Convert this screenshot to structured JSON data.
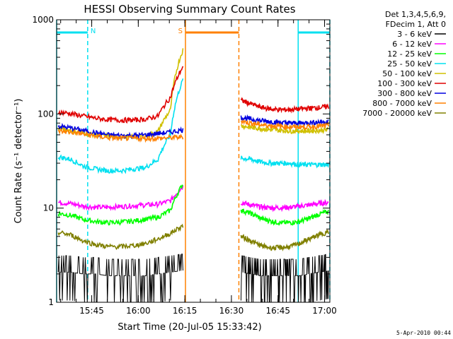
{
  "chart_data": {
    "type": "line",
    "title": "HESSI Observing Summary Count Rates",
    "xlabel": "Start Time (20-Jul-05 15:33:42)",
    "ylabel": "Count Rate (s⁻¹ detector⁻¹)",
    "yscale": "log",
    "ylim": [
      1,
      1000
    ],
    "xlim_minutes": [
      0,
      88
    ],
    "x_unit": "minutes after 15:33:42",
    "x_ticks": [
      {
        "at": 11.3,
        "label": "15:45"
      },
      {
        "at": 26.3,
        "label": "16:00"
      },
      {
        "at": 41.3,
        "label": "16:15"
      },
      {
        "at": 56.3,
        "label": "16:30"
      },
      {
        "at": 71.3,
        "label": "16:45"
      },
      {
        "at": 86.3,
        "label": "17:00"
      }
    ],
    "y_ticks": [
      {
        "value": 1,
        "label": "1"
      },
      {
        "value": 10,
        "label": "10"
      },
      {
        "value": 100,
        "label": "100"
      },
      {
        "value": 1000,
        "label": "1000"
      }
    ],
    "legend_header": [
      "Det 1,3,4,5,6,9,",
      "FDecim 1, Att 0"
    ],
    "legend_placement": "right",
    "grid": false,
    "timestamp": "5-Apr-2010 00:44",
    "markers": [
      {
        "label": "N",
        "start": 0,
        "end": 10,
        "color": "#00e0f0"
      },
      {
        "label": "S",
        "start": 41.5,
        "end": 58.7,
        "color": "#ff8000"
      },
      {
        "label": "",
        "start": 77.8,
        "end": 88,
        "color": "#00e0f0"
      }
    ],
    "series": [
      {
        "name": "3 - 6 keV",
        "color": "#000000",
        "seg1": [
          2.4,
          2.4,
          2.3,
          2.3,
          2.2,
          2.2,
          2.2,
          2.2,
          2.3,
          2.4,
          2.5
        ],
        "seg2": [
          2.4,
          2.3,
          2.2,
          2.2,
          2.2,
          2.2,
          2.2,
          2.3,
          2.4,
          2.5
        ]
      },
      {
        "name": "6 - 12 keV",
        "color": "#ff00ff",
        "seg1": [
          11.5,
          11.2,
          10.5,
          10.2,
          10.2,
          10.4,
          10.6,
          10.8,
          11,
          12,
          17
        ],
        "seg2": [
          11.5,
          10.8,
          10.3,
          10.1,
          10.1,
          10.2,
          10.5,
          10.8,
          11.2,
          11.5
        ]
      },
      {
        "name": "12 - 25 keV",
        "color": "#00ff00",
        "seg1": [
          8.8,
          8.4,
          7.6,
          7.2,
          7,
          7.1,
          7.3,
          7.6,
          8,
          9.5,
          18
        ],
        "seg2": [
          9.5,
          8.8,
          7.8,
          7.3,
          7,
          7,
          7.2,
          7.8,
          8.6,
          9.2
        ]
      },
      {
        "name": "25 - 50 keV",
        "color": "#00e0f0",
        "seg1": [
          35,
          33,
          28,
          26,
          25,
          25,
          26,
          27,
          33,
          60,
          230
        ],
        "seg2": [
          34,
          33,
          31,
          30,
          30,
          30,
          29,
          29,
          29,
          29
        ]
      },
      {
        "name": "50 - 100 keV",
        "color": "#d0c000",
        "seg1": [
          70,
          67,
          63,
          60,
          58,
          57,
          57,
          58,
          65,
          110,
          480
        ],
        "seg2": [
          75,
          72,
          70,
          68,
          67,
          66,
          66,
          66,
          67,
          68
        ]
      },
      {
        "name": "100 - 300 keV",
        "color": "#e00000",
        "seg1": [
          105,
          101,
          95,
          90,
          87,
          86,
          86,
          88,
          95,
          150,
          320
        ],
        "seg2": [
          140,
          128,
          118,
          113,
          111,
          111,
          113,
          115,
          117,
          120
        ]
      },
      {
        "name": "300 - 800 keV",
        "color": "#0000e0",
        "seg1": [
          74,
          71,
          67,
          63,
          60,
          59,
          59,
          60,
          62,
          64,
          68
        ],
        "seg2": [
          92,
          88,
          85,
          83,
          81,
          80,
          80,
          81,
          82,
          83
        ]
      },
      {
        "name": "800 - 7000 keV",
        "color": "#ff8000",
        "seg1": [
          66,
          64,
          61,
          58,
          56,
          55,
          55,
          55,
          55,
          56,
          57
        ],
        "seg2": [
          84,
          80,
          77,
          75,
          74,
          73,
          73,
          73,
          74,
          75
        ]
      },
      {
        "name": "7000 - 20000 keV",
        "color": "#808000",
        "seg1": [
          5.5,
          5.2,
          4.5,
          4.1,
          3.9,
          3.9,
          4,
          4.2,
          4.7,
          5.4,
          6.5
        ],
        "seg2": [
          5,
          4.5,
          4,
          3.8,
          3.8,
          3.9,
          4.2,
          4.7,
          5.2,
          5.6
        ]
      }
    ]
  }
}
